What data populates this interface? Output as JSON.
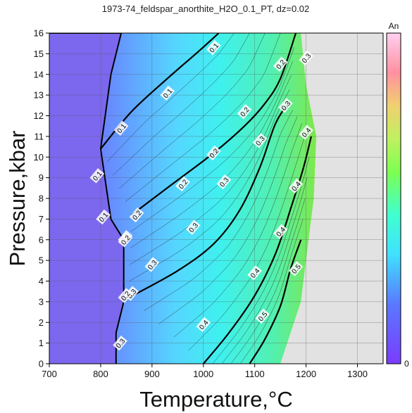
{
  "chart_data": {
    "type": "heatmap",
    "title": "1973-74_feldspar_anorthite_H2O_0.1_PT, dz=0.02",
    "xlabel": "Temperature,°C",
    "ylabel": "Pressure,kbar",
    "xlim": [
      700,
      1350
    ],
    "ylim": [
      0,
      16
    ],
    "x_ticks": [
      "700",
      "800",
      "900",
      "1000",
      "1100",
      "1200",
      "1300"
    ],
    "y_ticks": [
      "0",
      "1",
      "2",
      "3",
      "4",
      "5",
      "6",
      "7",
      "8",
      "9",
      "10",
      "11",
      "12",
      "13",
      "14",
      "15",
      "16"
    ],
    "grid": true,
    "colorbar": {
      "label": "An",
      "min_label": "0",
      "min": 0,
      "max": 1,
      "position": "right"
    },
    "regions": [
      {
        "name": "low",
        "color": "#7b68ee",
        "boundary": [
          [
            700,
            0
          ],
          [
            830,
            0
          ],
          [
            830,
            1.5
          ],
          [
            845,
            3
          ],
          [
            845,
            6
          ],
          [
            820,
            7
          ],
          [
            800,
            10.4
          ],
          [
            820,
            14
          ],
          [
            840,
            16
          ],
          [
            700,
            16
          ]
        ]
      },
      {
        "name": "fill",
        "color": "#40e8f0",
        "boundary": [
          [
            830,
            0
          ],
          [
            1150,
            0
          ],
          [
            1190,
            3
          ],
          [
            1215,
            8
          ],
          [
            1220,
            11
          ],
          [
            1200,
            13.5
          ],
          [
            1190,
            16
          ],
          [
            840,
            16
          ],
          [
            820,
            14
          ],
          [
            800,
            10.4
          ],
          [
            820,
            7
          ],
          [
            845,
            6
          ],
          [
            845,
            3
          ],
          [
            830,
            1.5
          ]
        ]
      },
      {
        "name": "unfilled",
        "color": "#e2e2e2",
        "boundary": [
          [
            1150,
            0
          ],
          [
            1350,
            0
          ],
          [
            1350,
            16
          ],
          [
            1190,
            16
          ],
          [
            1200,
            13.5
          ],
          [
            1220,
            11
          ],
          [
            1215,
            8
          ],
          [
            1190,
            3
          ]
        ]
      }
    ],
    "contours": [
      {
        "level": 0.1,
        "points": [
          [
            800,
            10.4
          ],
          [
            860,
            12.2
          ],
          [
            930,
            13.8
          ],
          [
            990,
            15.1
          ],
          [
            1030,
            16
          ]
        ]
      },
      {
        "level": 0.2,
        "points": [
          [
            860,
            7.2
          ],
          [
            940,
            8.7
          ],
          [
            1020,
            10.2
          ],
          [
            1080,
            11.5
          ],
          [
            1120,
            12.6
          ],
          [
            1150,
            13.8
          ],
          [
            1180,
            16
          ]
        ]
      },
      {
        "level": 0.3,
        "points": [
          [
            855,
            3.2
          ],
          [
            950,
            4.5
          ],
          [
            1020,
            5.8
          ],
          [
            1070,
            7.4
          ],
          [
            1110,
            9.5
          ],
          [
            1140,
            11.6
          ],
          [
            1165,
            12.6
          ]
        ]
      },
      {
        "level": 0.4,
        "points": [
          [
            1000,
            0
          ],
          [
            1050,
            1.5
          ],
          [
            1100,
            3.3
          ],
          [
            1140,
            5.3
          ],
          [
            1170,
            7.5
          ],
          [
            1195,
            9.5
          ],
          [
            1210,
            11
          ]
        ]
      },
      {
        "level": 0.5,
        "points": [
          [
            1090,
            0
          ],
          [
            1120,
            1.2
          ],
          [
            1150,
            2.8
          ],
          [
            1170,
            4.6
          ],
          [
            1190,
            6
          ]
        ]
      }
    ],
    "contour_labels": [
      {
        "text": "0.1",
        "x": 1020,
        "y": 15.3
      },
      {
        "text": "0.1",
        "x": 930,
        "y": 13.1
      },
      {
        "text": "0.1",
        "x": 840,
        "y": 11.4
      },
      {
        "text": "0.1",
        "x": 793,
        "y": 9.1
      },
      {
        "text": "0.1",
        "x": 805,
        "y": 7.1
      },
      {
        "text": "0.2",
        "x": 1150,
        "y": 14.5
      },
      {
        "text": "0.2",
        "x": 1080,
        "y": 12.2
      },
      {
        "text": "0.2",
        "x": 1020,
        "y": 10.2
      },
      {
        "text": "0.2",
        "x": 960,
        "y": 8.7
      },
      {
        "text": "0.2",
        "x": 870,
        "y": 7.2
      },
      {
        "text": "0.3",
        "x": 1200,
        "y": 14.8
      },
      {
        "text": "0.3",
        "x": 1160,
        "y": 12.5
      },
      {
        "text": "0.3",
        "x": 1110,
        "y": 10.8
      },
      {
        "text": "0.3",
        "x": 1040,
        "y": 8.8
      },
      {
        "text": "0.3",
        "x": 980,
        "y": 6.6
      },
      {
        "text": "0.3",
        "x": 900,
        "y": 4.8
      },
      {
        "text": "0.3",
        "x": 860,
        "y": 3.4
      },
      {
        "text": "0.4",
        "x": 1200,
        "y": 11.2
      },
      {
        "text": "0.4",
        "x": 1180,
        "y": 8.6
      },
      {
        "text": "0.4",
        "x": 1150,
        "y": 6.4
      },
      {
        "text": "0.4",
        "x": 1100,
        "y": 4.4
      },
      {
        "text": "0.4",
        "x": 1000,
        "y": 1.9
      },
      {
        "text": "0.5",
        "x": 1180,
        "y": 4.6
      },
      {
        "text": "0.5",
        "x": 1115,
        "y": 2.3
      },
      {
        "text": "0.1",
        "x": 848,
        "y": 6.1
      },
      {
        "text": "0.2",
        "x": 848,
        "y": 6.0
      },
      {
        "text": "0.2",
        "x": 848,
        "y": 3.3
      },
      {
        "text": "0.3",
        "x": 838,
        "y": 1.0
      }
    ]
  }
}
